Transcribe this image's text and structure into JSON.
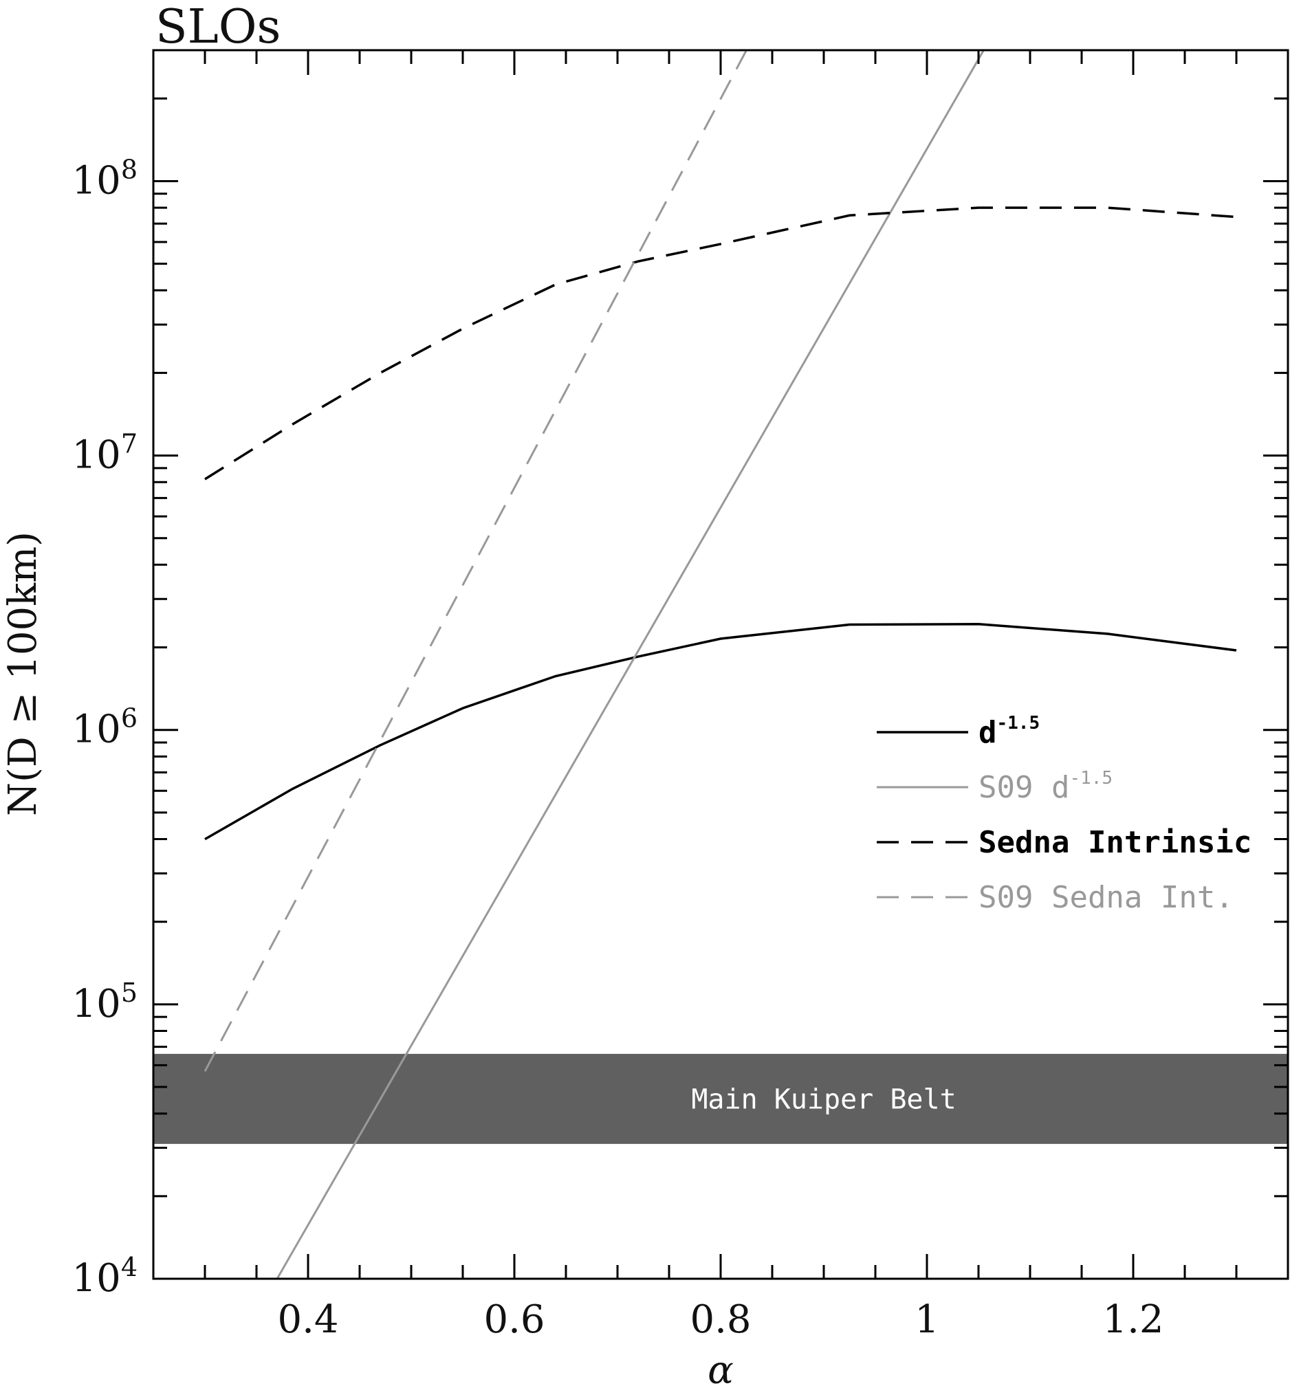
{
  "chart_data": {
    "type": "line",
    "title": "SLOs",
    "xlabel": "α",
    "ylabel": "N(D ≥ 100km)",
    "xlim": [
      0.25,
      1.35
    ],
    "ylim": [
      10000,
      300000000
    ],
    "y_scale": "log",
    "x_ticks": [
      {
        "value": 0.4,
        "label": "0.4"
      },
      {
        "value": 0.6,
        "label": "0.6"
      },
      {
        "value": 0.8,
        "label": "0.8"
      },
      {
        "value": 1.0,
        "label": "1"
      },
      {
        "value": 1.2,
        "label": "1.2"
      }
    ],
    "y_ticks": [
      {
        "value": 10000,
        "base": "10",
        "exp": "4"
      },
      {
        "value": 100000,
        "base": "10",
        "exp": "5"
      },
      {
        "value": 1000000,
        "base": "10",
        "exp": "6"
      },
      {
        "value": 10000000,
        "base": "10",
        "exp": "7"
      },
      {
        "value": 100000000,
        "base": "10",
        "exp": "8"
      }
    ],
    "legend_position": "right-middle",
    "series": [
      {
        "name": "d-1.5",
        "name_base": "d",
        "name_exp": "-1.5",
        "color": "#000000",
        "dash": "solid",
        "x": [
          0.3,
          0.385,
          0.47,
          0.55,
          0.64,
          0.72,
          0.8,
          0.925,
          1.05,
          1.175,
          1.3
        ],
        "y": [
          400000,
          610000,
          880000,
          1200000,
          1570000,
          1850000,
          2150000,
          2420000,
          2430000,
          2240000,
          1950000
        ]
      },
      {
        "name": "S09 d-1.5",
        "name_base": "S09 d",
        "name_exp": "-1.5",
        "color": "#999999",
        "dash": "solid",
        "x": [
          0.37,
          1.055
        ],
        "y": [
          10000,
          300000000
        ]
      },
      {
        "name": "Sedna Intrinsic",
        "color": "#000000",
        "dash": "dashed",
        "x": [
          0.3,
          0.385,
          0.47,
          0.55,
          0.64,
          0.72,
          0.8,
          0.925,
          1.05,
          1.175,
          1.3
        ],
        "y": [
          8200000,
          13000000,
          20000000,
          29000000,
          42000000,
          51000000,
          59000000,
          75000000,
          80000000,
          80000000,
          74000000
        ]
      },
      {
        "name": "S09 Sedna Int.",
        "color": "#999999",
        "dash": "dashed",
        "x": [
          0.3,
          0.825
        ],
        "y": [
          57000,
          300000000
        ]
      }
    ],
    "bands": [
      {
        "label": "Main Kuiper Belt",
        "y_range": [
          31000,
          66000
        ],
        "color": "#606060"
      }
    ]
  }
}
